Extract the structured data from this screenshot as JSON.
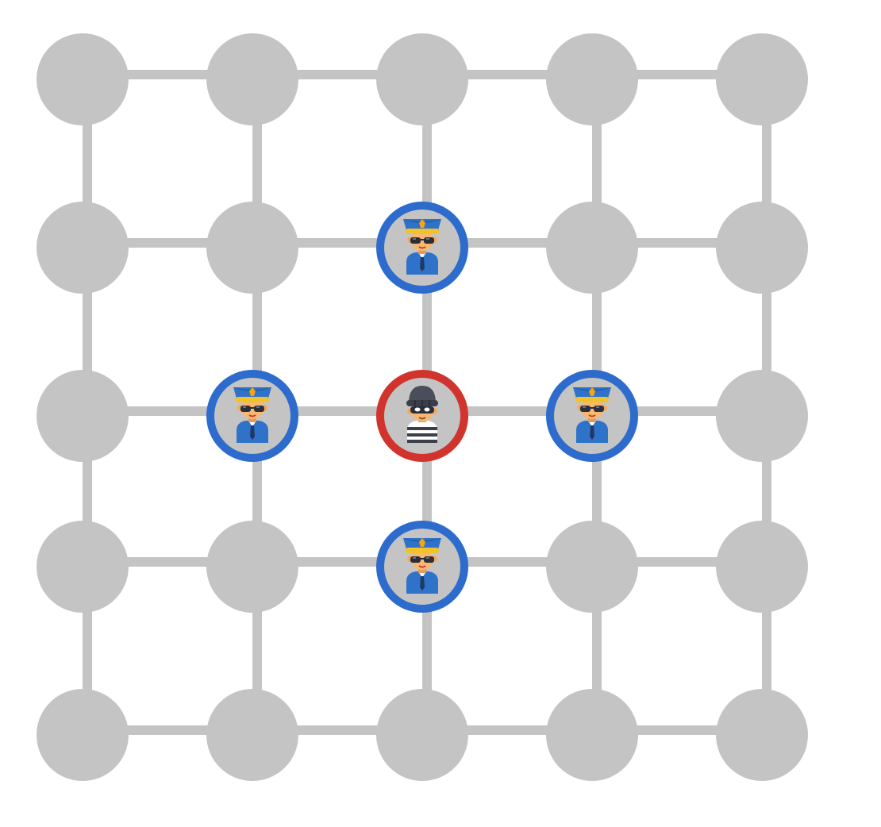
{
  "game": {
    "type": "cops-and-robber",
    "grid": {
      "rows": 5,
      "cols": 5
    },
    "colors": {
      "edge": "#c4c4c4",
      "node": "#c4c4c4",
      "cop_ring": "#2d6bcc",
      "robber_ring": "#d0342c",
      "background": "#ffffff"
    },
    "pieces": [
      {
        "kind": "cop",
        "icon": "police-officer-icon",
        "row": 1,
        "col": 2
      },
      {
        "kind": "cop",
        "icon": "police-officer-icon",
        "row": 2,
        "col": 1
      },
      {
        "kind": "robber",
        "icon": "robber-icon",
        "row": 2,
        "col": 2
      },
      {
        "kind": "cop",
        "icon": "police-officer-icon",
        "row": 2,
        "col": 3
      },
      {
        "kind": "cop",
        "icon": "police-officer-icon",
        "row": 3,
        "col": 2
      }
    ]
  }
}
